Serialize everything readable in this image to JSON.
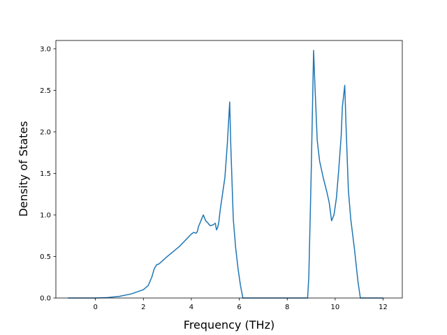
{
  "chart_data": {
    "type": "line",
    "title": "",
    "xlabel": "Frequency (THz)",
    "ylabel": "Density of States",
    "xlim": [
      -1.65,
      12.8
    ],
    "ylim": [
      0,
      3.1
    ],
    "xticks": [
      0,
      2,
      4,
      6,
      8,
      10,
      12
    ],
    "xtick_labels": [
      "0",
      "2",
      "4",
      "6",
      "8",
      "10",
      "12"
    ],
    "yticks": [
      0.0,
      0.5,
      1.0,
      1.5,
      2.0,
      2.5,
      3.0
    ],
    "ytick_labels": [
      "0.0",
      "0.5",
      "1.0",
      "1.5",
      "2.0",
      "2.5",
      "3.0"
    ],
    "grid": false,
    "legend": "none",
    "series": [
      {
        "color": "#1f77b4",
        "x": [
          -1.15,
          0.0,
          0.5,
          1.0,
          1.5,
          2.0,
          2.2,
          2.35,
          2.45,
          2.55,
          2.65,
          3.0,
          3.5,
          4.0,
          4.1,
          4.2,
          4.25,
          4.3,
          4.4,
          4.5,
          4.6,
          4.7,
          4.75,
          4.8,
          4.9,
          4.95,
          5.0,
          5.05,
          5.1,
          5.15,
          5.2,
          5.3,
          5.4,
          5.5,
          5.6,
          5.65,
          5.75,
          5.85,
          5.95,
          6.05,
          6.15,
          6.3,
          7.0,
          8.0,
          8.85,
          8.9,
          9.0,
          9.1,
          9.15,
          9.25,
          9.35,
          9.5,
          9.65,
          9.75,
          9.85,
          9.95,
          10.05,
          10.15,
          10.25,
          10.3,
          10.4,
          10.45,
          10.55,
          10.65,
          10.8,
          10.95,
          11.05,
          11.5,
          12.0
        ],
        "y": [
          0.0,
          0.0,
          0.005,
          0.02,
          0.05,
          0.1,
          0.15,
          0.25,
          0.35,
          0.4,
          0.41,
          0.5,
          0.62,
          0.77,
          0.79,
          0.78,
          0.8,
          0.86,
          0.93,
          1.0,
          0.93,
          0.9,
          0.88,
          0.87,
          0.88,
          0.89,
          0.9,
          0.82,
          0.85,
          0.92,
          1.05,
          1.25,
          1.45,
          1.85,
          2.36,
          1.8,
          0.95,
          0.6,
          0.35,
          0.15,
          0.0,
          0.0,
          0.0,
          0.0,
          0.0,
          0.25,
          1.5,
          2.98,
          2.6,
          1.9,
          1.65,
          1.45,
          1.28,
          1.15,
          0.93,
          1.0,
          1.2,
          1.55,
          1.95,
          2.3,
          2.56,
          2.1,
          1.3,
          0.95,
          0.6,
          0.2,
          0.0,
          0.0,
          0.0
        ]
      }
    ]
  }
}
